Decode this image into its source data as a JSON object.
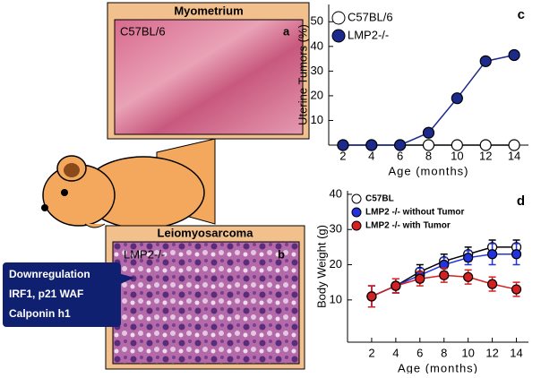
{
  "panels": {
    "a": {
      "title": "Myometrium",
      "label": "C57BL/6",
      "letter": "a"
    },
    "b": {
      "title": "Leiomyosarcoma",
      "label": "LMP2-/-",
      "letter": "b"
    },
    "callout": [
      "Downregulation",
      "IRF1, p21 WAF",
      "Calponin h1"
    ]
  },
  "chart_data": [
    {
      "type": "line",
      "panel_label": "c",
      "x_label": "Age (months)",
      "y_label": "Uterine Tumors (%)",
      "x": [
        2,
        4,
        6,
        8,
        10,
        12,
        14
      ],
      "xlim": [
        1,
        15
      ],
      "xticks": [
        2,
        4,
        6,
        8,
        10,
        12,
        14
      ],
      "ylim": [
        0,
        57
      ],
      "yticks": [
        10,
        20,
        30,
        40,
        50
      ],
      "series": [
        {
          "name": "C57BL/6",
          "color": "#ffffff",
          "values": [
            0,
            0,
            0,
            0,
            0,
            0,
            0
          ]
        },
        {
          "name": "LMP2-/-",
          "color": "#1c2a8c",
          "values": [
            0,
            0,
            0,
            5,
            19,
            34,
            36.5
          ]
        }
      ]
    },
    {
      "type": "line",
      "panel_label": "d",
      "x_label": "Age (months)",
      "y_label": "Body Weight (g)",
      "x": [
        2,
        4,
        6,
        8,
        10,
        12,
        14
      ],
      "xlim": [
        0,
        15
      ],
      "xticks": [
        2,
        4,
        6,
        8,
        10,
        12,
        14
      ],
      "ylim": [
        -2,
        41
      ],
      "yticks": [
        10,
        20,
        30,
        40
      ],
      "series": [
        {
          "name": "C57BL",
          "color": "#ffffff",
          "values": [
            11,
            14,
            18,
            21,
            23,
            25,
            25
          ],
          "errors": [
            3,
            2,
            2,
            2,
            2,
            2,
            2
          ]
        },
        {
          "name": "LMP2 -/- without Tumor",
          "color": "#2233dd",
          "values": [
            11,
            14,
            17,
            20,
            22,
            23,
            23
          ],
          "errors": [
            3,
            2,
            2,
            2,
            2,
            3,
            3
          ]
        },
        {
          "name": "LMP2 -/- with Tumor",
          "color": "#d42020",
          "values": [
            11,
            14,
            16,
            17,
            16.5,
            14.5,
            13
          ],
          "errors": [
            3,
            2,
            2,
            2,
            2,
            2,
            2
          ]
        }
      ]
    }
  ]
}
